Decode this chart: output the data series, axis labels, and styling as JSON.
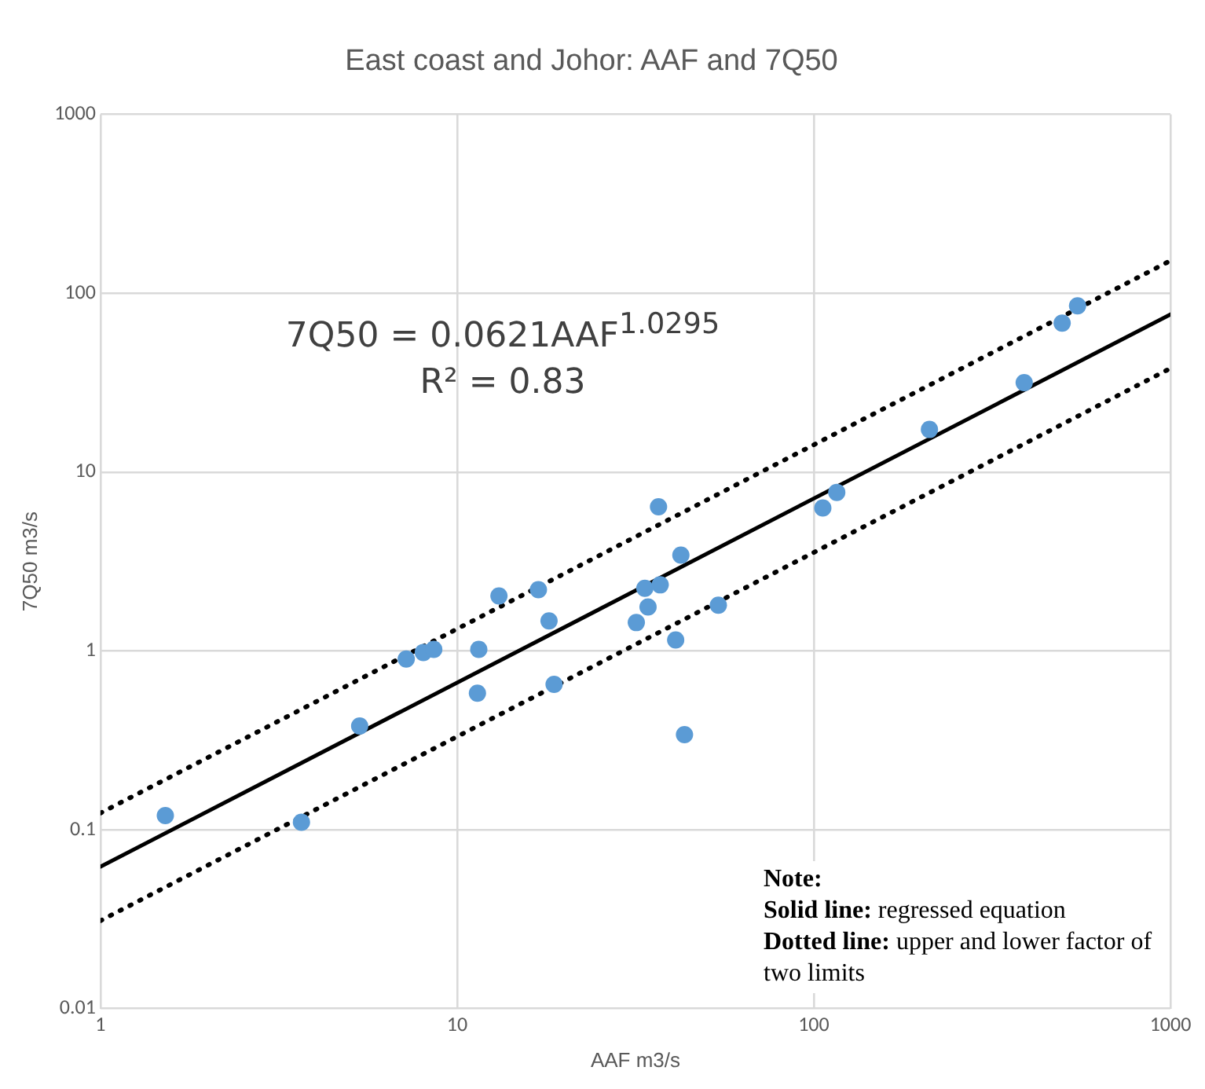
{
  "chart_data": {
    "type": "scatter",
    "title": "East coast and Johor: AAF and 7Q50",
    "xlabel": "AAF m3/s",
    "ylabel": "7Q50 m3/s",
    "log": "xy",
    "grid": true,
    "legend": false,
    "marker": "circle",
    "xlim": [
      1,
      1000
    ],
    "xticks": [
      1,
      10,
      100,
      1000
    ],
    "ylim": [
      0.01,
      1000
    ],
    "yticks": [
      0.01,
      0.1,
      1,
      10,
      100,
      1000
    ],
    "annotations": [
      "7Q50 = 0.0621AAF$^{1.0295}$\nR² = 0.83",
      "Note:\nSolid line: regressed equation\nDotted line: upper and lower factor of two limits"
    ],
    "series": [
      {
        "color": "#5b9bd5",
        "x": [
          1.52,
          3.66,
          5.33,
          7.2,
          8.04,
          8.6,
          11.5,
          11.4,
          13.1,
          16.9,
          18.1,
          18.7,
          31.8,
          33.6,
          34.3,
          36.7,
          37.1,
          41,
          42.4,
          43.4,
          54,
          106,
          116,
          211,
          389,
          497,
          549
        ],
        "values": [
          0.12,
          0.11,
          0.38,
          0.9,
          0.98,
          1.02,
          1.02,
          0.58,
          2.03,
          2.2,
          1.47,
          0.65,
          1.44,
          2.24,
          1.76,
          6.4,
          2.34,
          1.15,
          3.43,
          0.34,
          1.8,
          6.3,
          7.7,
          17.3,
          31.6,
          68,
          85
        ]
      },
      {
        "type": "line",
        "color": "#000000",
        "marker": "none",
        "line_style": "solid",
        "x": [
          1,
          1000
        ],
        "values": [
          0.0621,
          76.1
        ]
      },
      {
        "type": "line",
        "color": "#000000",
        "marker": "none",
        "line_style": "dotted",
        "x": [
          1,
          1000
        ],
        "values": [
          0.124,
          152
        ]
      },
      {
        "type": "line",
        "color": "#000000",
        "marker": "none",
        "line_style": "dotted",
        "x": [
          1,
          1000
        ],
        "values": [
          0.031,
          38
        ]
      }
    ]
  }
}
